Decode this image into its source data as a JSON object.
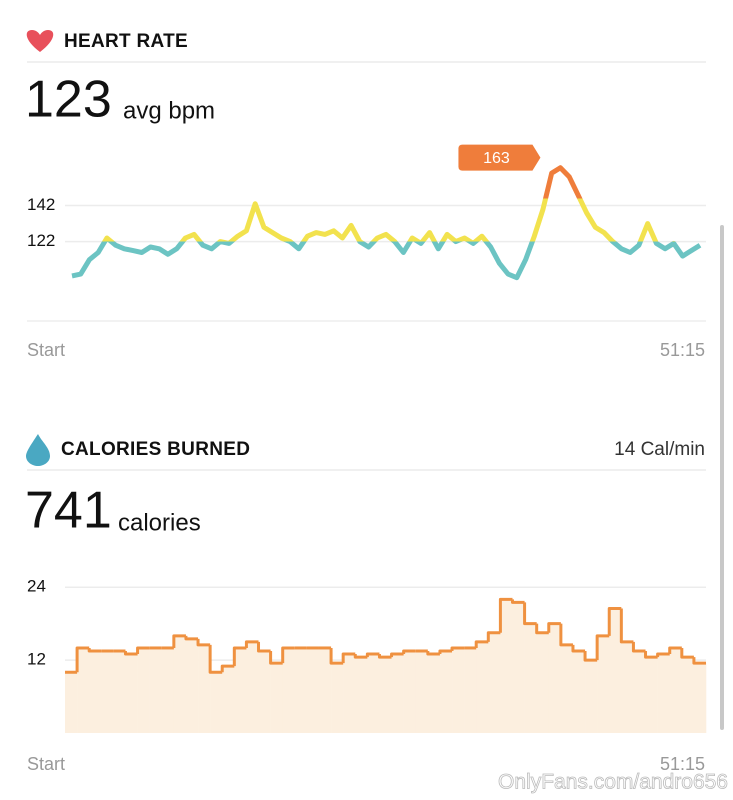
{
  "chart_data": [
    {
      "type": "line",
      "title": "HEART RATE",
      "summary_value": 123,
      "summary_unit": "avg bpm",
      "values": [
        103,
        104,
        112,
        116,
        124,
        120,
        118,
        117,
        116,
        119,
        118,
        115,
        118,
        124,
        126,
        120,
        118,
        122,
        121,
        125,
        128,
        143,
        130,
        127,
        124,
        122,
        118,
        125,
        127,
        126,
        128,
        124,
        131,
        122,
        119,
        124,
        126,
        122,
        116,
        124,
        121,
        127,
        118,
        126,
        122,
        124,
        121,
        125,
        119,
        110,
        104,
        102,
        112,
        125,
        140,
        160,
        163,
        158,
        148,
        138,
        130,
        127,
        122,
        118,
        116,
        120,
        132,
        121,
        118,
        121,
        114,
        117,
        120
      ],
      "ylim": [
        78,
        180
      ],
      "yticks": [
        122,
        142
      ],
      "x_labels": [
        "Start",
        "51:15"
      ],
      "peak_label": 163,
      "color_bands": [
        {
          "from": 78,
          "color": "#6cc4c3"
        },
        {
          "from": 122,
          "color": "#f2e24e"
        },
        {
          "from": 146,
          "color": "#ef7d3b"
        }
      ]
    },
    {
      "type": "step-area",
      "title": "CALORIES BURNED",
      "rate": "14 Cal/min",
      "summary_value": 741,
      "summary_unit": "calories",
      "values": [
        10,
        14,
        13.5,
        13.5,
        13.5,
        13,
        14,
        14,
        14,
        16,
        15.5,
        14.5,
        10,
        11,
        14,
        15,
        13.5,
        11.5,
        14,
        14,
        14,
        14,
        11.5,
        13,
        12.5,
        13,
        12.5,
        13,
        13.5,
        13.5,
        13,
        13.5,
        14,
        14,
        15,
        16.5,
        22,
        21.5,
        18,
        16.5,
        18,
        14.5,
        13.5,
        12,
        16,
        20.5,
        15,
        13.5,
        12.5,
        13,
        14,
        12.5,
        11.5
      ],
      "ylim": [
        0,
        27
      ],
      "yticks": [
        12,
        24
      ],
      "x_labels": [
        "Start",
        "51:15"
      ],
      "color": "#ef9140",
      "fill": "#fcefdf"
    }
  ],
  "watermark": "OnlyFans.com/andro656"
}
